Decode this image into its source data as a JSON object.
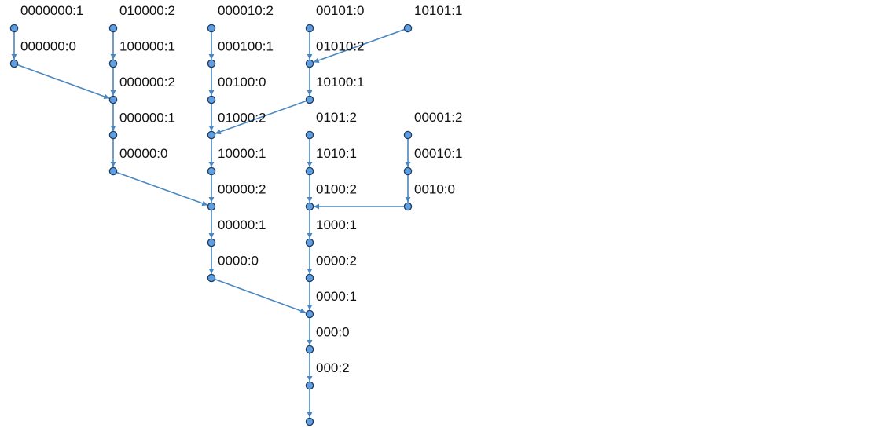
{
  "graph": {
    "edge_color": "#4a86c0",
    "node_fill": "#5f9ee0",
    "node_stroke": "#1f3f66",
    "nodes": [
      {
        "id": "a0",
        "label": "0000000:1"
      },
      {
        "id": "a1",
        "label": ""
      },
      {
        "id": "b0",
        "label": "010000:2"
      },
      {
        "id": "b1",
        "label": ""
      },
      {
        "id": "b2",
        "label": ""
      },
      {
        "id": "b3",
        "label": ""
      },
      {
        "id": "b4",
        "label": ""
      },
      {
        "id": "c0",
        "label": "000010:2"
      },
      {
        "id": "c1",
        "label": ""
      },
      {
        "id": "c2",
        "label": ""
      },
      {
        "id": "c3",
        "label": ""
      },
      {
        "id": "c4",
        "label": ""
      },
      {
        "id": "c5",
        "label": ""
      },
      {
        "id": "c6",
        "label": ""
      },
      {
        "id": "c7",
        "label": ""
      },
      {
        "id": "d0",
        "label": "00101:0"
      },
      {
        "id": "d1",
        "label": ""
      },
      {
        "id": "d2",
        "label": ""
      },
      {
        "id": "e0",
        "label": "10101:1"
      },
      {
        "id": "f0",
        "label": "0101:2"
      },
      {
        "id": "f1",
        "label": ""
      },
      {
        "id": "f2",
        "label": ""
      },
      {
        "id": "f3",
        "label": ""
      },
      {
        "id": "f4",
        "label": ""
      },
      {
        "id": "f5",
        "label": ""
      },
      {
        "id": "f6",
        "label": ""
      },
      {
        "id": "f7",
        "label": ""
      },
      {
        "id": "f8",
        "label": ""
      },
      {
        "id": "g0",
        "label": "00001:2"
      },
      {
        "id": "g1",
        "label": ""
      },
      {
        "id": "g2",
        "label": ""
      }
    ],
    "edges": [
      {
        "from": "a0",
        "to": "a1",
        "label": "000000:0"
      },
      {
        "from": "a1",
        "to": "b2",
        "label": ""
      },
      {
        "from": "b0",
        "to": "b1",
        "label": "100000:1"
      },
      {
        "from": "b1",
        "to": "b2",
        "label": "000000:2"
      },
      {
        "from": "b2",
        "to": "b3",
        "label": "000000:1"
      },
      {
        "from": "b3",
        "to": "b4",
        "label": "00000:0"
      },
      {
        "from": "b4",
        "to": "c5",
        "label": ""
      },
      {
        "from": "c0",
        "to": "c1",
        "label": "000100:1"
      },
      {
        "from": "c1",
        "to": "c2",
        "label": "00100:0"
      },
      {
        "from": "c2",
        "to": "c3",
        "label": "01000:2"
      },
      {
        "from": "c3",
        "to": "c4",
        "label": "10000:1"
      },
      {
        "from": "c4",
        "to": "c5",
        "label": "00000:2"
      },
      {
        "from": "c5",
        "to": "c6",
        "label": "00000:1"
      },
      {
        "from": "c6",
        "to": "c7",
        "label": "0000:0"
      },
      {
        "from": "c7",
        "to": "f5",
        "label": ""
      },
      {
        "from": "d0",
        "to": "d1",
        "label": "01010:2"
      },
      {
        "from": "e0",
        "to": "d1",
        "label": ""
      },
      {
        "from": "d1",
        "to": "d2",
        "label": "10100:1"
      },
      {
        "from": "d2",
        "to": "c3",
        "label": ""
      },
      {
        "from": "f0",
        "to": "f1",
        "label": "1010:1"
      },
      {
        "from": "f1",
        "to": "f2",
        "label": "0100:2"
      },
      {
        "from": "f2",
        "to": "f3",
        "label": "1000:1"
      },
      {
        "from": "f3",
        "to": "f4",
        "label": "0000:2"
      },
      {
        "from": "f4",
        "to": "f5",
        "label": "0000:1"
      },
      {
        "from": "f5",
        "to": "f6",
        "label": "000:0"
      },
      {
        "from": "f6",
        "to": "f7",
        "label": "000:2"
      },
      {
        "from": "f7",
        "to": "f8",
        "label": ""
      },
      {
        "from": "g0",
        "to": "g1",
        "label": "00010:1"
      },
      {
        "from": "g1",
        "to": "g2",
        "label": "0010:0"
      },
      {
        "from": "g2",
        "to": "f2",
        "label": ""
      }
    ]
  }
}
